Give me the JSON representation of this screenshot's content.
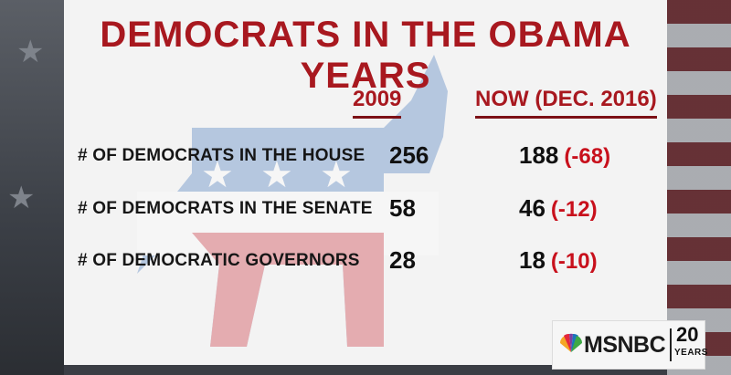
{
  "title": "DEMOCRATS IN THE OBAMA YEARS",
  "columns": {
    "then": "2009",
    "now": "NOW (DEC. 2016)"
  },
  "rows": [
    {
      "label": "# OF DEMOCRATS IN THE HOUSE",
      "then": "256",
      "now": "188",
      "change": "(-68)"
    },
    {
      "label": "# OF DEMOCRATS IN THE SENATE",
      "then": "58",
      "now": "46",
      "change": "(-12)"
    },
    {
      "label": "# OF DEMOCRATIC GOVERNORS",
      "then": "28",
      "now": "18",
      "change": "(-10)"
    }
  ],
  "network": {
    "name": "MSNBC",
    "anniversary_number": "20",
    "anniversary_label": "YEARS"
  },
  "colors": {
    "accent": "#a8181f",
    "change": "#c8101c",
    "text": "#111111",
    "panel": "#f3f3f3"
  }
}
